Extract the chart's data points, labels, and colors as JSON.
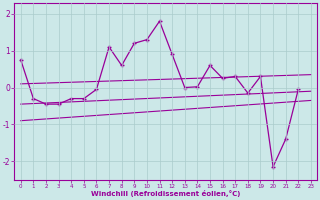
{
  "xlabel": "Windchill (Refroidissement éolien,°C)",
  "x_values": [
    0,
    1,
    2,
    3,
    4,
    5,
    6,
    7,
    8,
    9,
    10,
    11,
    12,
    13,
    14,
    15,
    16,
    17,
    18,
    19,
    20,
    21,
    22,
    23
  ],
  "main_line": [
    0.75,
    -0.3,
    -0.45,
    -0.45,
    -0.3,
    -0.3,
    -0.05,
    1.1,
    0.6,
    1.2,
    1.3,
    1.8,
    0.9,
    0.0,
    0.02,
    0.6,
    0.25,
    0.3,
    -0.15,
    0.3,
    -2.15,
    -1.4,
    -0.05,
    null
  ],
  "trend_line1_x": [
    0,
    23
  ],
  "trend_line1_y": [
    0.1,
    0.35
  ],
  "trend_line2_x": [
    0,
    23
  ],
  "trend_line2_y": [
    -0.45,
    -0.1
  ],
  "trend_line3_x": [
    0,
    23
  ],
  "trend_line3_y": [
    -0.9,
    -0.35
  ],
  "line_color": "#990099",
  "bg_color": "#cce8e8",
  "grid_color": "#aacccc",
  "ylim": [
    -2.5,
    2.3
  ],
  "xlim": [
    -0.5,
    23.5
  ]
}
